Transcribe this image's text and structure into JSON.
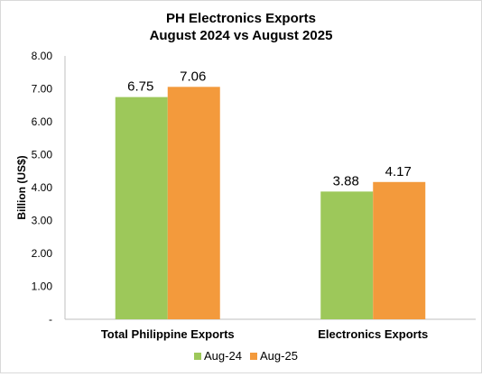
{
  "chart_data": {
    "type": "bar",
    "title": "PH Electronics Exports",
    "subtitle": "August 2024 vs August 2025",
    "xlabel": "",
    "ylabel": "Billion (US$)",
    "categories": [
      "Total Philippine Exports",
      "Electronics Exports"
    ],
    "series": [
      {
        "name": "Aug-24",
        "values": [
          6.75,
          3.88
        ],
        "color": "#9dc85a"
      },
      {
        "name": "Aug-25",
        "values": [
          7.06,
          4.17
        ],
        "color": "#f39a3c"
      }
    ],
    "data_labels": [
      [
        "6.75",
        "3.88"
      ],
      [
        "7.06",
        "4.17"
      ]
    ],
    "ylim": [
      0,
      8
    ],
    "y_ticks": [
      0,
      1,
      2,
      3,
      4,
      5,
      6,
      7,
      8
    ],
    "y_tick_labels": [
      "-",
      "1.00",
      "2.00",
      "3.00",
      "4.00",
      "5.00",
      "6.00",
      "7.00",
      "8.00"
    ],
    "grid": false,
    "legend_position": "bottom"
  }
}
